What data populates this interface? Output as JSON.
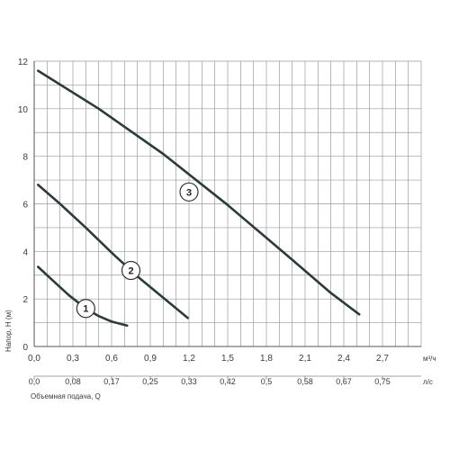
{
  "chart_data": {
    "type": "line",
    "ylabel": "Напор, Н (м)",
    "xlabel": "Объемная подача, Q",
    "x_unit_primary": "м³/ч",
    "x_unit_secondary": "л/с",
    "xlim": [
      0,
      3
    ],
    "ylim": [
      0,
      12
    ],
    "x_ticks": [
      0,
      0.3,
      0.6,
      0.9,
      1.2,
      1.5,
      1.8,
      2.1,
      2.4,
      2.7
    ],
    "x_tick_labels": [
      "0,0",
      "0,3",
      "0,6",
      "0,9",
      "1,2",
      "1,5",
      "1,8",
      "2,1",
      "2,4",
      "2,7"
    ],
    "x2_ticks": [
      0,
      0.3,
      0.6,
      0.9,
      1.2,
      1.5,
      1.8,
      2.1,
      2.4,
      2.7
    ],
    "x2_tick_labels": [
      "0,0",
      "0,08",
      "0,17",
      "0,25",
      "0,33",
      "0,42",
      "0,5",
      "0,58",
      "0,67",
      "0,75"
    ],
    "y_ticks": [
      0,
      2,
      4,
      6,
      8,
      10,
      12
    ],
    "y_tick_labels": [
      "0",
      "2",
      "4",
      "6",
      "8",
      "10",
      "12"
    ],
    "grid": true,
    "minor_grid_step_x": 0.1,
    "minor_grid_step_y": 1,
    "line_color": "#2b3b3b",
    "grid_color": "#9a9a9a",
    "series": [
      {
        "name": "1",
        "points": [
          [
            0.03,
            3.35
          ],
          [
            0.15,
            2.75
          ],
          [
            0.27,
            2.15
          ],
          [
            0.4,
            1.6
          ],
          [
            0.5,
            1.28
          ],
          [
            0.6,
            1.05
          ],
          [
            0.72,
            0.88
          ]
        ],
        "marker": [
          0.4,
          1.6
        ]
      },
      {
        "name": "2",
        "points": [
          [
            0.03,
            6.8
          ],
          [
            0.2,
            6.0
          ],
          [
            0.4,
            5.0
          ],
          [
            0.6,
            3.95
          ],
          [
            0.8,
            2.95
          ],
          [
            1.0,
            2.05
          ],
          [
            1.19,
            1.2
          ]
        ],
        "marker": [
          0.75,
          3.2
        ]
      },
      {
        "name": "3",
        "points": [
          [
            0.03,
            11.6
          ],
          [
            0.5,
            10.0
          ],
          [
            1.0,
            8.1
          ],
          [
            1.5,
            5.95
          ],
          [
            2.0,
            3.65
          ],
          [
            2.3,
            2.25
          ],
          [
            2.52,
            1.35
          ]
        ],
        "marker": [
          1.2,
          6.5
        ]
      }
    ]
  }
}
